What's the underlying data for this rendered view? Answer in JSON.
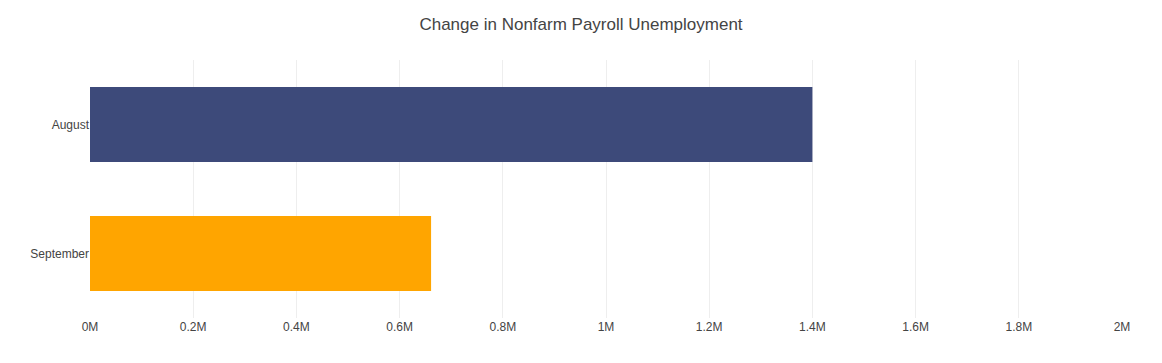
{
  "chart_data": {
    "type": "bar",
    "orientation": "horizontal",
    "title": "Change in Nonfarm Payroll Unemployment",
    "categories": [
      "September",
      "August"
    ],
    "values": [
      661000,
      1400000
    ],
    "colors": [
      "#ffa500",
      "#3d4a7a"
    ],
    "xlim": [
      0,
      2000000
    ],
    "xticks": [
      {
        "value": 0,
        "label": "0M"
      },
      {
        "value": 200000,
        "label": "0.2M"
      },
      {
        "value": 400000,
        "label": "0.4M"
      },
      {
        "value": 600000,
        "label": "0.6M"
      },
      {
        "value": 800000,
        "label": "0.8M"
      },
      {
        "value": 1000000,
        "label": "1M"
      },
      {
        "value": 1200000,
        "label": "1.2M"
      },
      {
        "value": 1400000,
        "label": "1.4M"
      },
      {
        "value": 1600000,
        "label": "1.6M"
      },
      {
        "value": 1800000,
        "label": "1.8M"
      },
      {
        "value": 2000000,
        "label": "2M"
      }
    ],
    "grid": true
  }
}
